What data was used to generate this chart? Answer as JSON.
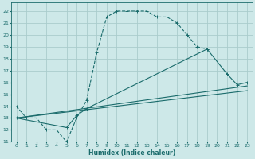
{
  "title": "",
  "xlabel": "Humidex (Indice chaleur)",
  "background_color": "#cde8e8",
  "grid_color": "#aacccc",
  "line_color": "#1a6b6b",
  "xlim": [
    -0.5,
    23.5
  ],
  "ylim": [
    11,
    22.7
  ],
  "yticks": [
    11,
    12,
    13,
    14,
    15,
    16,
    17,
    18,
    19,
    20,
    21,
    22
  ],
  "xticks": [
    0,
    1,
    2,
    3,
    4,
    5,
    6,
    7,
    8,
    9,
    10,
    11,
    12,
    13,
    14,
    15,
    16,
    17,
    18,
    19,
    20,
    21,
    22,
    23
  ],
  "curve1_x": [
    0,
    1,
    2,
    3,
    4,
    5,
    6,
    7,
    8,
    9,
    10,
    11,
    12,
    13,
    14,
    15,
    16,
    17,
    18,
    19
  ],
  "curve1_y": [
    14,
    13,
    13,
    12,
    12,
    11,
    13,
    14.5,
    18.5,
    21.5,
    22,
    22,
    22,
    22,
    21.5,
    21.5,
    21,
    20,
    19,
    18.8
  ],
  "curve2_x": [
    0,
    5,
    6,
    7,
    19,
    21,
    22,
    23
  ],
  "curve2_y": [
    13,
    12.2,
    13.2,
    13.8,
    18.8,
    16.7,
    15.8,
    16
  ],
  "curve3_x": [
    0,
    23
  ],
  "curve3_y": [
    13.0,
    15.7
  ],
  "curve4_x": [
    0,
    23
  ],
  "curve4_y": [
    13.0,
    15.3
  ]
}
